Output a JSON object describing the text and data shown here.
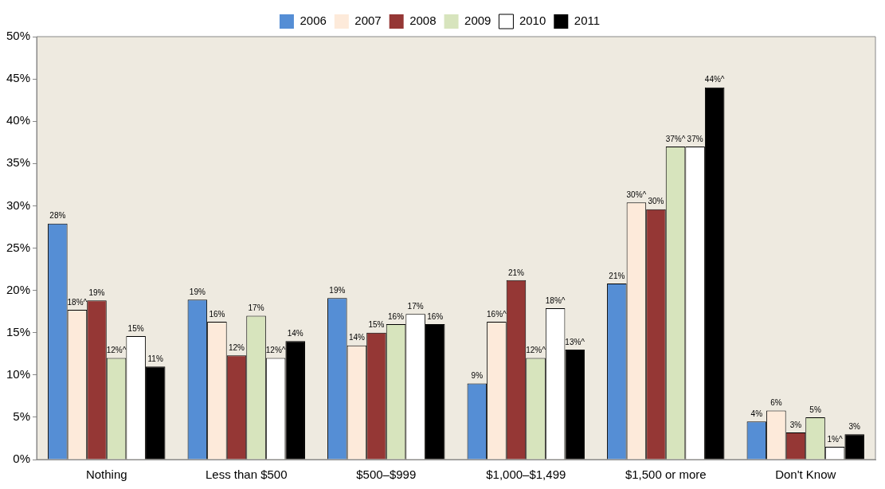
{
  "chart_data": {
    "type": "bar",
    "categories": [
      "Nothing",
      "Less than $500",
      "$500–$999",
      "$1,000–$1,499",
      "$1,500 or more",
      "Don't Know"
    ],
    "series": [
      {
        "name": "2006",
        "color": "#558ed5",
        "values": [
          27.9,
          18.9,
          19.1,
          9.0,
          20.8,
          4.5
        ],
        "value_labels": [
          "28%",
          "19%",
          "19%",
          "9%",
          "21%",
          "4%"
        ]
      },
      {
        "name": "2007",
        "color": "#fdeada",
        "values": [
          17.7,
          16.3,
          13.5,
          16.3,
          30.4,
          5.8
        ],
        "value_labels": [
          "18%^",
          "16%",
          "14%",
          "16%^",
          "30%^",
          "6%"
        ]
      },
      {
        "name": "2008",
        "color": "#953735",
        "values": [
          18.8,
          12.3,
          15.0,
          21.2,
          29.6,
          3.2
        ],
        "value_labels": [
          "19%",
          "12%",
          "15%",
          "21%",
          "30%",
          "3%"
        ]
      },
      {
        "name": "2009",
        "color": "#d7e4bd",
        "values": [
          12.0,
          17.0,
          16.0,
          12.0,
          37.0,
          5.0
        ],
        "value_labels": [
          "12%^",
          "17%",
          "16%",
          "12%^",
          "37%^",
          "5%"
        ]
      },
      {
        "name": "2010",
        "color": "#ffffff",
        "values": [
          14.6,
          12.0,
          17.2,
          17.9,
          37.0,
          1.5
        ],
        "value_labels": [
          "15%",
          "12%^",
          "17%",
          "18%^",
          "37%",
          "1%^"
        ]
      },
      {
        "name": "2011",
        "color": "#000000",
        "values": [
          11.0,
          14.0,
          16.0,
          13.0,
          44.0,
          3.0
        ],
        "value_labels": [
          "11%",
          "14%",
          "16%",
          "13%^",
          "44%^",
          "3%"
        ]
      }
    ],
    "ylim": [
      0,
      50
    ],
    "yticks": [
      {
        "value": 0,
        "label": "0%"
      },
      {
        "value": 5,
        "label": "5%"
      },
      {
        "value": 10,
        "label": "10%"
      },
      {
        "value": 15,
        "label": "15%"
      },
      {
        "value": 20,
        "label": "20%"
      },
      {
        "value": 25,
        "label": "25%"
      },
      {
        "value": 30,
        "label": "30%"
      },
      {
        "value": 35,
        "label": "35%"
      },
      {
        "value": 40,
        "label": "40%"
      },
      {
        "value": 45,
        "label": "45%"
      },
      {
        "value": 50,
        "label": "50%"
      }
    ],
    "grid": false,
    "legend": "top"
  }
}
